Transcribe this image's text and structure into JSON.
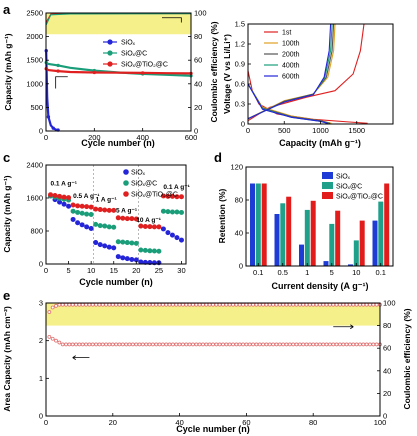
{
  "panels": [
    {
      "id": "a",
      "label": "a",
      "type": "line",
      "xlabel": "Cycle number (n)",
      "ylabel": "Capacity (mAh g⁻¹)",
      "y2label": "Coulombic efficiency (%)",
      "xlim": [
        0,
        600
      ],
      "ylim": [
        0,
        2500
      ],
      "y2lim": [
        0,
        100
      ],
      "xticks": [
        0,
        200,
        400,
        600
      ],
      "yticks": [
        0,
        500,
        1000,
        1500,
        2000,
        2500
      ],
      "y2ticks": [
        0,
        20,
        40,
        60,
        80,
        100
      ],
      "highlight_band": {
        "y2_from": 82,
        "y2_to": 100,
        "color": "#f6f08a"
      },
      "legend": [
        "SiOₓ",
        "SiOₓ@C",
        "SiOₓ@TiO₂@C"
      ],
      "series": [
        {
          "name": "SiOₓ",
          "color": "#2424d8",
          "x": [
            1,
            5,
            10,
            20,
            30,
            40,
            50
          ],
          "y": [
            1700,
            700,
            300,
            120,
            60,
            30,
            20
          ]
        },
        {
          "name": "SiOₓ@C",
          "color": "#1a9e7a",
          "x": [
            1,
            10,
            50,
            100,
            200,
            300,
            400,
            500,
            600
          ],
          "y": [
            1450,
            1420,
            1390,
            1340,
            1280,
            1240,
            1210,
            1190,
            1170
          ]
        },
        {
          "name": "SiOₓ@TiO₂@C",
          "color": "#e02020",
          "x": [
            1,
            10,
            50,
            100,
            200,
            300,
            400,
            500,
            600
          ],
          "y": [
            1320,
            1290,
            1270,
            1250,
            1240,
            1235,
            1230,
            1225,
            1220
          ]
        }
      ],
      "ce_series": [
        {
          "color": "#e02020",
          "x": [
            1,
            20,
            100,
            600
          ],
          "y": [
            92,
            99,
            99.5,
            99.6
          ]
        },
        {
          "color": "#1a9e7a",
          "x": [
            1,
            20,
            100,
            600
          ],
          "y": [
            90,
            98.5,
            99.2,
            99.4
          ]
        }
      ]
    },
    {
      "id": "b",
      "label": "",
      "type": "line",
      "xlabel": "Capacity (mAh g⁻¹)",
      "ylabel": "Voltage (V vs Li/Li⁺)",
      "xlim": [
        0,
        2000
      ],
      "ylim": [
        0,
        1.5
      ],
      "xticks": [
        0,
        500,
        1000,
        1500
      ],
      "yticks": [
        0.0,
        0.3,
        0.6,
        0.9,
        1.2,
        1.5
      ],
      "legend": [
        "1st",
        "100th",
        "200th",
        "400th",
        "600th"
      ],
      "series": [
        {
          "name": "1st",
          "color": "#e02020",
          "discharge": [
            [
              0,
              0.8
            ],
            [
              60,
              0.5
            ],
            [
              150,
              0.3
            ],
            [
              400,
              0.15
            ],
            [
              900,
              0.07
            ],
            [
              1400,
              0.03
            ],
            [
              1650,
              0.01
            ]
          ],
          "charge": [
            [
              0,
              0.05
            ],
            [
              300,
              0.25
            ],
            [
              800,
              0.4
            ],
            [
              1200,
              0.5
            ],
            [
              1450,
              0.75
            ],
            [
              1550,
              1.1
            ],
            [
              1600,
              1.5
            ]
          ]
        },
        {
          "name": "100th",
          "color": "#e0a020",
          "discharge": [
            [
              0,
              0.6
            ],
            [
              200,
              0.25
            ],
            [
              600,
              0.12
            ],
            [
              1000,
              0.05
            ],
            [
              1150,
              0.01
            ]
          ],
          "charge": [
            [
              0,
              0.08
            ],
            [
              500,
              0.35
            ],
            [
              900,
              0.45
            ],
            [
              1100,
              0.7
            ],
            [
              1180,
              1.1
            ],
            [
              1200,
              1.5
            ]
          ]
        },
        {
          "name": "200th",
          "color": "#555555",
          "discharge": [
            [
              0,
              0.6
            ],
            [
              200,
              0.24
            ],
            [
              600,
              0.11
            ],
            [
              1000,
              0.05
            ],
            [
              1130,
              0.01
            ]
          ],
          "charge": [
            [
              0,
              0.08
            ],
            [
              500,
              0.34
            ],
            [
              900,
              0.45
            ],
            [
              1080,
              0.7
            ],
            [
              1160,
              1.1
            ],
            [
              1180,
              1.5
            ]
          ]
        },
        {
          "name": "400th",
          "color": "#1a9e7a",
          "discharge": [
            [
              0,
              0.6
            ],
            [
              200,
              0.23
            ],
            [
              600,
              0.1
            ],
            [
              1000,
              0.04
            ],
            [
              1110,
              0.01
            ]
          ],
          "charge": [
            [
              0,
              0.08
            ],
            [
              500,
              0.33
            ],
            [
              900,
              0.44
            ],
            [
              1060,
              0.7
            ],
            [
              1140,
              1.1
            ],
            [
              1160,
              1.5
            ]
          ]
        },
        {
          "name": "600th",
          "color": "#2424d8",
          "discharge": [
            [
              0,
              0.6
            ],
            [
              200,
              0.22
            ],
            [
              600,
              0.1
            ],
            [
              1000,
              0.04
            ],
            [
              1100,
              0.01
            ]
          ],
          "charge": [
            [
              0,
              0.08
            ],
            [
              500,
              0.33
            ],
            [
              900,
              0.44
            ],
            [
              1050,
              0.7
            ],
            [
              1120,
              1.1
            ],
            [
              1140,
              1.5
            ]
          ]
        }
      ]
    },
    {
      "id": "c",
      "label": "c",
      "type": "scatter",
      "xlabel": "Cycle number (n)",
      "ylabel": "Capacity (mAh g⁻¹)",
      "xlim": [
        0,
        31
      ],
      "ylim": [
        0,
        2400
      ],
      "xticks": [
        0,
        5,
        10,
        15,
        20,
        25,
        30
      ],
      "yticks": [
        0,
        800,
        1600,
        2400
      ],
      "legend": [
        "SiOₓ",
        "SiOₓ@C",
        "SiOₓ@TiO₂@C"
      ],
      "annotations": [
        "0.1 A g⁻¹",
        "0.5 A g⁻¹",
        "1 A g⁻¹",
        "5 A g⁻¹",
        "10 A g⁻¹",
        "0.1 A g⁻¹"
      ],
      "series": [
        {
          "name": "SiOₓ",
          "color": "#2424d8",
          "y": [
            1650,
            1560,
            1500,
            1450,
            1400,
            1080,
            1000,
            950,
            900,
            860,
            520,
            470,
            440,
            410,
            390,
            180,
            150,
            130,
            110,
            100,
            50,
            40,
            35,
            30,
            30,
            850,
            760,
            700,
            640,
            580
          ]
        },
        {
          "name": "SiOₓ@C",
          "color": "#1a9e7a",
          "y": [
            1650,
            1620,
            1590,
            1570,
            1550,
            1280,
            1250,
            1230,
            1210,
            1200,
            960,
            930,
            920,
            900,
            890,
            540,
            530,
            520,
            510,
            500,
            340,
            330,
            320,
            315,
            310,
            1280,
            1270,
            1260,
            1260,
            1250
          ]
        },
        {
          "name": "SiOₓ@TiO₂@C",
          "color": "#e02020",
          "y": [
            1680,
            1660,
            1640,
            1620,
            1610,
            1430,
            1410,
            1400,
            1390,
            1380,
            1330,
            1320,
            1310,
            1300,
            1300,
            1120,
            1110,
            1100,
            1100,
            1090,
            920,
            910,
            905,
            900,
            900,
            1650,
            1640,
            1640,
            1630,
            1630
          ]
        }
      ]
    },
    {
      "id": "d",
      "label": "d",
      "type": "bar",
      "xlabel": "Current density (A g⁻¹)",
      "ylabel": "Retention (%)",
      "categories": [
        "0.1",
        "0.5",
        "1",
        "5",
        "10",
        "0.1"
      ],
      "ylim": [
        0,
        120
      ],
      "yticks": [
        0,
        40,
        80,
        120
      ],
      "legend": [
        "SiOₓ",
        "SiOₓ@C",
        "SiOₓ@TiO₂@C"
      ],
      "series": [
        {
          "name": "SiOₓ",
          "color": "#1f3bd6",
          "values": [
            100,
            63,
            26,
            6,
            2,
            55
          ]
        },
        {
          "name": "SiOₓ@C",
          "color": "#1fa08a",
          "values": [
            100,
            76,
            68,
            51,
            31,
            78
          ]
        },
        {
          "name": "SiOₓ@TiO₂@C",
          "color": "#e21b1b",
          "values": [
            100,
            84,
            79,
            67,
            55,
            100
          ]
        }
      ]
    },
    {
      "id": "e",
      "label": "e",
      "type": "scatter",
      "xlabel": "Cycle number (n)",
      "ylabel": "Area Capacity (mAh cm⁻²)",
      "y2label": "Coulombic efficiency (%)",
      "xlim": [
        0,
        100
      ],
      "ylim": [
        0,
        3
      ],
      "y2lim": [
        0,
        100
      ],
      "xticks": [
        0,
        20,
        40,
        60,
        80,
        100
      ],
      "yticks": [
        0,
        1,
        2,
        3
      ],
      "y2ticks": [
        0,
        20,
        40,
        60,
        80,
        100
      ],
      "highlight_band": {
        "y2_from": 80,
        "y2_to": 100,
        "color": "#f6f08a"
      },
      "capacity": {
        "color": "#e07070",
        "first": [
          2.1,
          2.05,
          2.0,
          1.95
        ],
        "plateau": 1.9
      },
      "efficiency": {
        "color": "#e07070",
        "first": [
          92,
          96,
          97.5
        ],
        "plateau": 98.5
      }
    }
  ]
}
